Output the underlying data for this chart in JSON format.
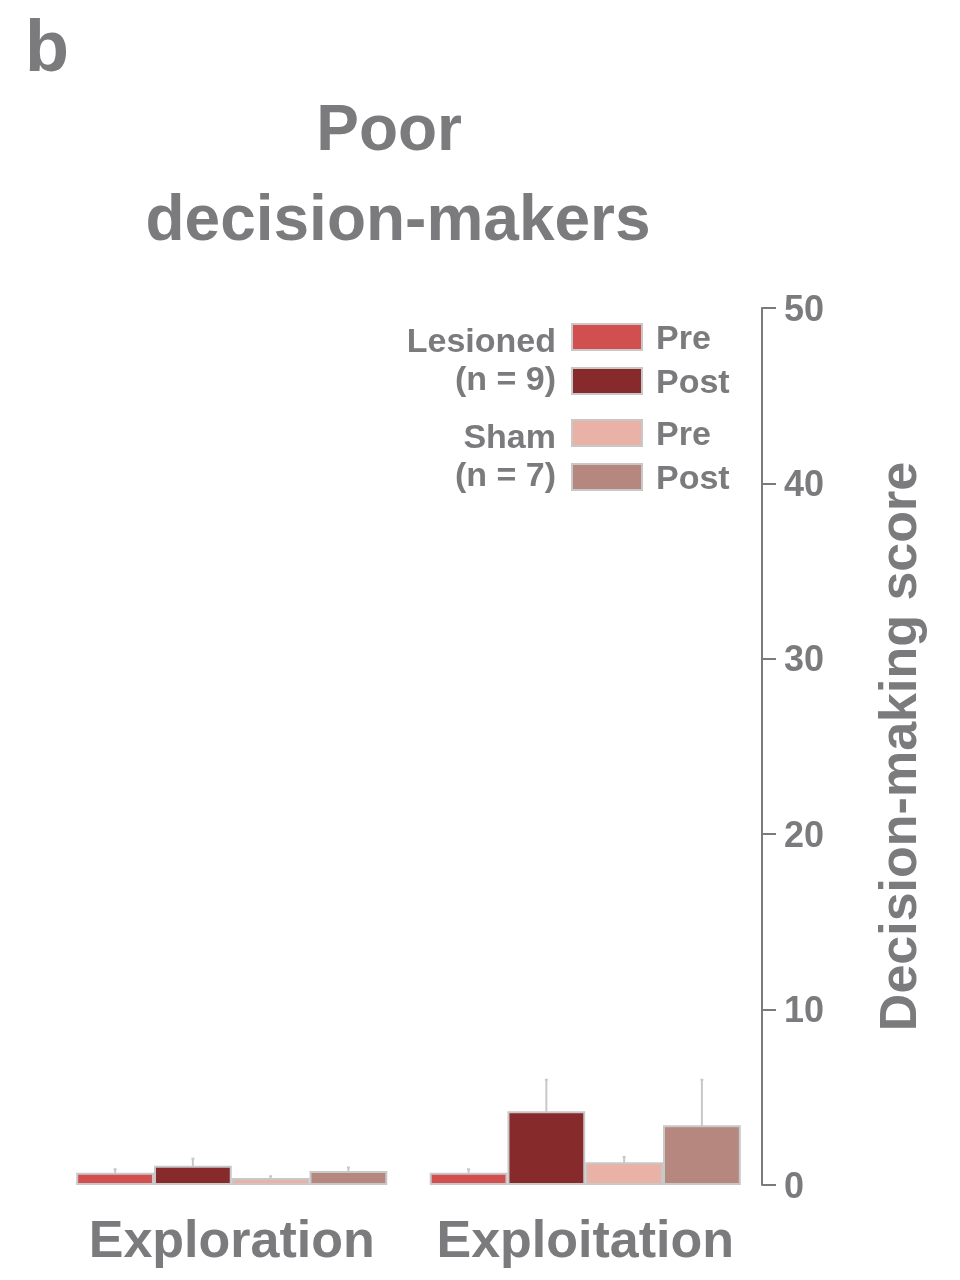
{
  "chart_data": {
    "type": "bar",
    "title": "Poor decision-makers",
    "ylabel": "Decision-making score",
    "annotations": [
      "b",
      "Lesioned (n = 9)",
      "Sham (n = 7)"
    ],
    "categories": [
      "Exploration",
      "Exploitation"
    ],
    "series": [
      {
        "name": "Pre",
        "color": "#d14f4f",
        "values": [
          0.7,
          0.7
        ],
        "errors": [
          0.2,
          0.2
        ]
      },
      {
        "name": "Post",
        "color": "#862a2b",
        "values": [
          1.1,
          4.2
        ],
        "errors": [
          0.4,
          1.8
        ]
      },
      {
        "name": "Pre",
        "color": "#eab1a6",
        "values": [
          0.4,
          1.3
        ],
        "errors": [
          0.1,
          0.3
        ]
      },
      {
        "name": "Post",
        "color": "#b5877f",
        "values": [
          0.8,
          3.4
        ],
        "errors": [
          0.2,
          2.6
        ]
      }
    ],
    "ylim": [
      0,
      50
    ],
    "yticks": [
      0,
      10,
      20,
      30,
      40,
      50
    ],
    "grid": false,
    "legend": "top right"
  }
}
